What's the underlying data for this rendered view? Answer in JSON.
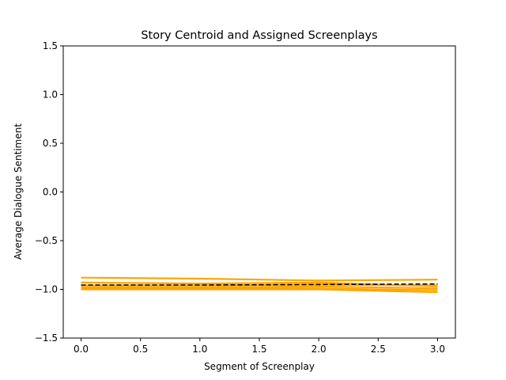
{
  "chart_data": {
    "type": "line",
    "title": "Story Centroid and Assigned Screenplays",
    "xlabel": "Segment of Screenplay",
    "ylabel": "Average Dialogue Sentiment",
    "xlim": [
      -0.15,
      3.15
    ],
    "ylim": [
      -1.5,
      1.5
    ],
    "xticks": [
      0.0,
      0.5,
      1.0,
      1.5,
      2.0,
      2.5,
      3.0
    ],
    "xtick_labels": [
      "0.0",
      "0.5",
      "1.0",
      "1.5",
      "2.0",
      "2.5",
      "3.0"
    ],
    "yticks": [
      -1.5,
      -1.0,
      -0.5,
      0.0,
      0.5,
      1.0,
      1.5
    ],
    "ytick_labels": [
      "−1.5",
      "−1.0",
      "−0.5",
      "0.0",
      "0.5",
      "1.0",
      "1.5"
    ],
    "grid": false,
    "x": [
      0,
      1,
      2,
      3
    ],
    "series": [
      {
        "values": [
          -0.88,
          -0.89,
          -0.91,
          -0.9
        ],
        "color": "#ffa500",
        "style": "solid"
      },
      {
        "values": [
          -0.93,
          -0.94,
          -0.93,
          -0.97
        ],
        "color": "#ffa500",
        "style": "solid"
      },
      {
        "values": [
          -0.96,
          -0.96,
          -0.95,
          -0.96
        ],
        "color": "#ffa500",
        "style": "solid"
      },
      {
        "values": [
          -0.98,
          -0.98,
          -0.97,
          -0.99
        ],
        "color": "#ffa500",
        "style": "solid"
      },
      {
        "values": [
          -0.99,
          -0.99,
          -0.99,
          -1.01
        ],
        "color": "#ffa500",
        "style": "solid"
      },
      {
        "values": [
          -1.0,
          -1.0,
          -1.0,
          -1.03
        ],
        "color": "#ffa500",
        "style": "solid"
      },
      {
        "values": [
          -0.955,
          -0.955,
          -0.95,
          -0.945
        ],
        "color": "#000000",
        "style": "dashed"
      }
    ]
  }
}
